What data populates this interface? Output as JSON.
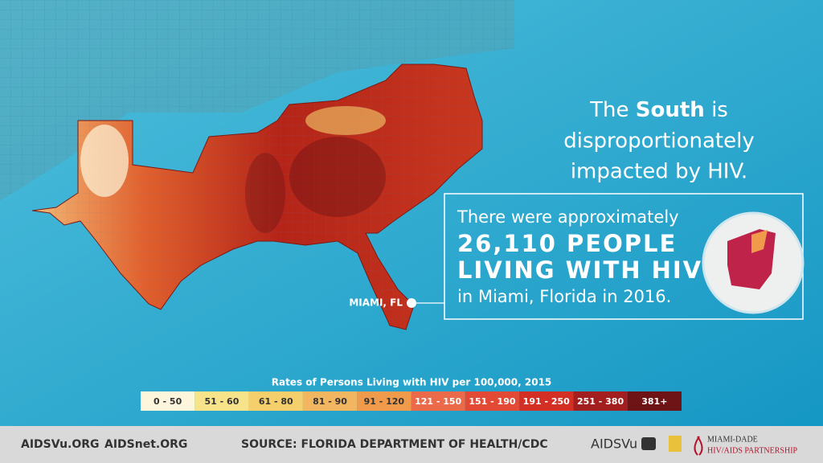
{
  "headline": {
    "pre": "The",
    "bold": "South",
    "post": "is",
    "line2": "disproportionately",
    "line3": "impacted by HIV."
  },
  "callout": {
    "line1": "There were approximately",
    "line2": "26,110 PEOPLE",
    "line3": "LIVING WITH HIV",
    "line4": "in Miami, Florida in 2016."
  },
  "map_label": "MIAMI, FL",
  "legend": {
    "title": "Rates of Persons Living with HIV per 100,000, 2015",
    "bins": [
      {
        "label": "0 - 50",
        "color": "#fdf6dc"
      },
      {
        "label": "51 - 60",
        "color": "#f7e48a"
      },
      {
        "label": "61 - 80",
        "color": "#f4cf6c"
      },
      {
        "label": "81 - 90",
        "color": "#f2b560"
      },
      {
        "label": "91 - 120",
        "color": "#f09a4c"
      },
      {
        "label": "121 - 150",
        "color": "#ea6a4a"
      },
      {
        "label": "151 - 190",
        "color": "#e24a36"
      },
      {
        "label": "191 - 250",
        "color": "#d42f24"
      },
      {
        "label": "251 - 380",
        "color": "#a31e1e"
      },
      {
        "label": "381+",
        "color": "#6e1316"
      }
    ]
  },
  "footer": {
    "links": [
      "AIDSVu.ORG",
      "AIDSnet.ORG"
    ],
    "source": "SOURCE: FLORIDA DEPARTMENT OF HEALTH/CDC",
    "logos": [
      "AIDSVu",
      "MIAMI-DADE",
      "HIV/AIDS PARTNERSHIP"
    ]
  }
}
